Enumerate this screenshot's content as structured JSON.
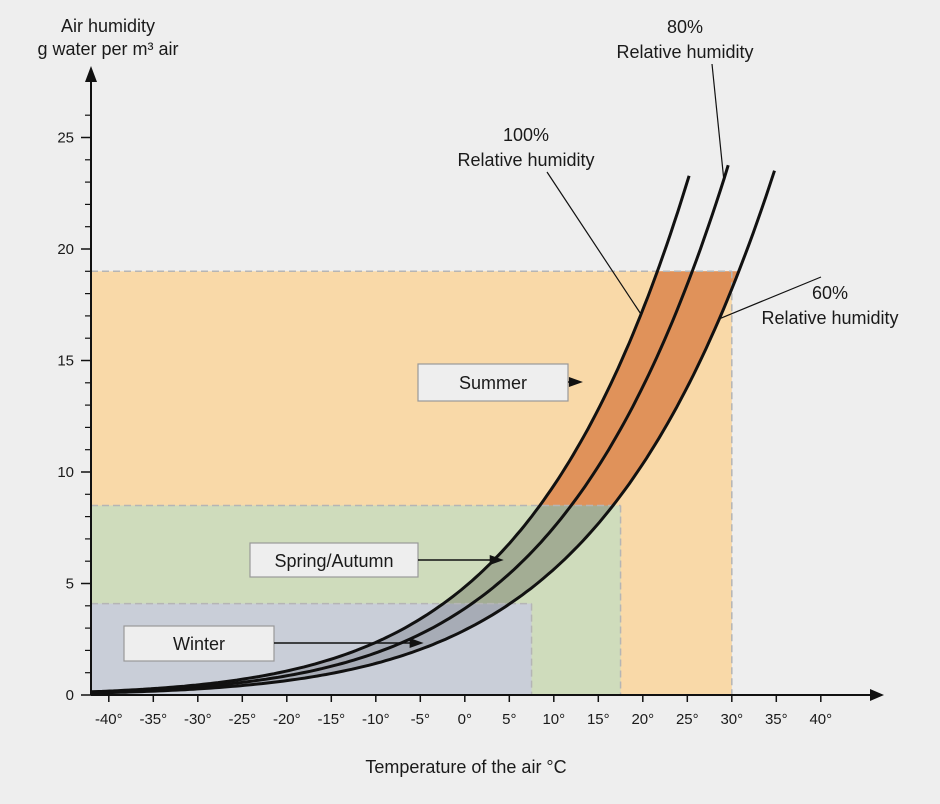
{
  "chart_data": {
    "type": "line",
    "title": "",
    "ylabel_line1": "Air humidity",
    "ylabel_line2": "g water per m³ air",
    "xlabel": "Temperature of the air °C",
    "xlim": [
      -42,
      44
    ],
    "ylim": [
      0,
      27
    ],
    "x_ticks": [
      -40,
      -35,
      -30,
      -25,
      -20,
      -15,
      -10,
      -5,
      0,
      5,
      10,
      15,
      20,
      25,
      30,
      35,
      40
    ],
    "x_tick_labels": [
      "-40°",
      "-35°",
      "-30°",
      "-25°",
      "-20°",
      "-15°",
      "-10°",
      "-5°",
      "0°",
      "5°",
      "10°",
      "15°",
      "20°",
      "25°",
      "30°",
      "35°",
      "40°"
    ],
    "y_ticks": [
      0,
      5,
      10,
      15,
      20,
      25
    ],
    "y_tick_labels": [
      "0",
      "5",
      "10",
      "15",
      "20",
      "25"
    ],
    "y_minor_step": 1,
    "grid": false,
    "series": [
      {
        "name": "100% Relative humidity",
        "rh": 1.0,
        "x_range": [
          -42,
          25.2
        ]
      },
      {
        "name": "80% Relative humidity",
        "rh": 0.8,
        "x_range": [
          -42,
          29.6
        ]
      },
      {
        "name": "60% Relative humidity",
        "rh": 0.6,
        "x_range": [
          -42,
          34.8
        ]
      }
    ],
    "series_labels": [
      {
        "pct": "100%",
        "text": "Relative humidity"
      },
      {
        "pct": "80%",
        "text": "Relative humidity"
      },
      {
        "pct": "60%",
        "text": "Relative humidity"
      }
    ],
    "regions": [
      {
        "name": "Summer",
        "x_max": 30,
        "y_max": 19,
        "color": "#f9d9a8"
      },
      {
        "name": "Spring/Autumn",
        "x_max": 17.5,
        "y_max": 8.5,
        "color": "#cfdcbc"
      },
      {
        "name": "Winter",
        "x_max": 7.5,
        "y_max": 4.1,
        "color": "#c9ced8"
      }
    ],
    "band_fills": {
      "Summer": "#e0925a",
      "Spring/Autumn": "#a3ad94",
      "Winter": "#a7acb6"
    },
    "region_labels": [
      "Summer",
      "Spring/Autumn",
      "Winter"
    ]
  }
}
